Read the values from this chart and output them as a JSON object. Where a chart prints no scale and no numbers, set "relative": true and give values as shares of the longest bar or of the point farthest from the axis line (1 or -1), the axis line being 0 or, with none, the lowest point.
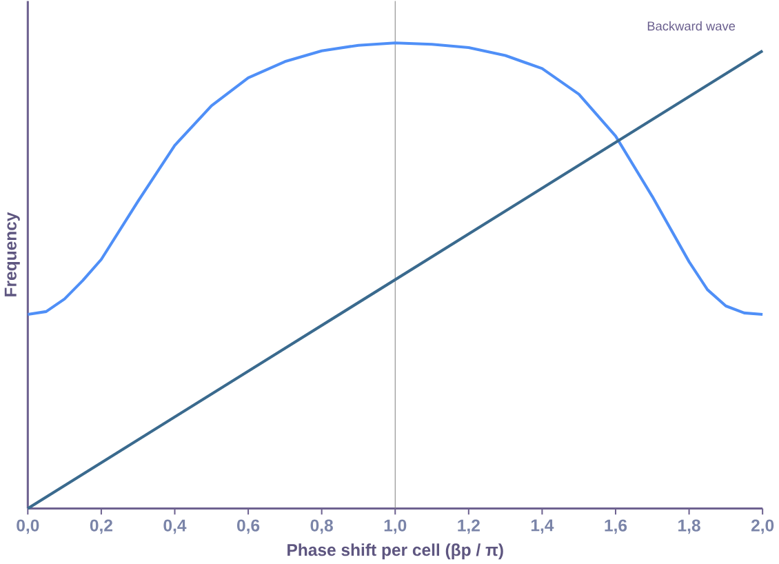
{
  "chart_data": {
    "type": "line",
    "relative": true,
    "xlabel": "Phase shift per cell    (βp / π)",
    "ylabel": "Frequency",
    "annotations": [
      "Backward wave"
    ],
    "xlim": [
      0,
      2.0
    ],
    "xticks": [
      {
        "value": 0,
        "label": "0,0"
      },
      {
        "value": 0.2,
        "label": "0,2"
      },
      {
        "value": 0.4,
        "label": "0,4"
      },
      {
        "value": 0.6,
        "label": "0,6"
      },
      {
        "value": 0.8,
        "label": "0,8"
      },
      {
        "value": 1.0,
        "label": "1,0"
      },
      {
        "value": 1.2,
        "label": "1,2"
      },
      {
        "value": 1.4,
        "label": "1,4"
      },
      {
        "value": 1.6,
        "label": "1,6"
      },
      {
        "value": 1.8,
        "label": "1,8"
      },
      {
        "value": 2.0,
        "label": "2,0"
      }
    ],
    "ref_lines": [
      {
        "axis": "x",
        "value": 1.0,
        "color": "#808080"
      }
    ],
    "series": [
      {
        "color": "#4f8ff7",
        "x": [
          0,
          0.05,
          0.1,
          0.15,
          0.2,
          0.3,
          0.4,
          0.5,
          0.6,
          0.7,
          0.8,
          0.9,
          1.0,
          1.1,
          1.2,
          1.3,
          1.4,
          1.5,
          1.6,
          1.7,
          1.8,
          1.85,
          1.9,
          1.95,
          2.0
        ],
        "values": [
          0.417,
          0.423,
          0.45,
          0.49,
          0.535,
          0.66,
          0.78,
          0.865,
          0.925,
          0.96,
          0.983,
          0.995,
          1.0,
          0.997,
          0.99,
          0.973,
          0.945,
          0.89,
          0.8,
          0.67,
          0.53,
          0.47,
          0.435,
          0.42,
          0.417
        ]
      },
      {
        "color": "#3a6a8e",
        "x": [
          0,
          2.0
        ],
        "values": [
          0,
          0.983
        ]
      }
    ]
  }
}
